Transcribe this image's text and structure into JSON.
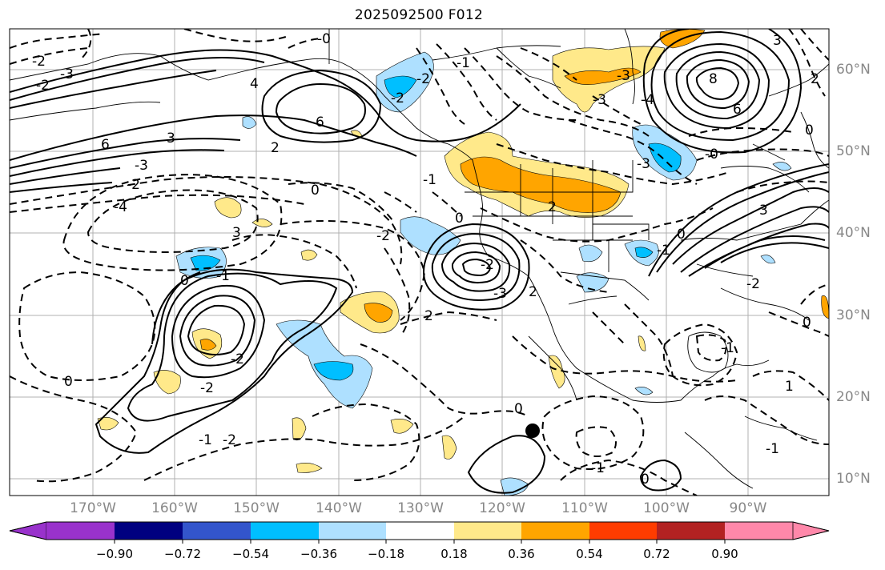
{
  "title": "2025092500 F012",
  "map": {
    "lon_labels": [
      "170°W",
      "160°W",
      "150°W",
      "140°W",
      "130°W",
      "120°W",
      "110°W",
      "100°W",
      "90°W"
    ],
    "lat_labels": [
      "60°N",
      "50°N",
      "40°N",
      "30°N",
      "20°N",
      "10°N"
    ],
    "contour_labels": [
      "6",
      "4",
      "6",
      "3",
      "2",
      "0",
      "-1",
      "-2",
      "-3",
      "-4",
      "3",
      "0",
      "2",
      "-2",
      "-3",
      "-2",
      "2",
      "3",
      "-2",
      "0",
      "-1",
      "-1",
      "-2",
      "0",
      "-1",
      "0",
      "-2",
      "-1",
      "0",
      "8",
      "6",
      "-0",
      "3",
      "2",
      "-3",
      "-0",
      "-2",
      "-3",
      "-2",
      "1",
      "0",
      "-1",
      "-2",
      "-1",
      "-2",
      "-3",
      "-4",
      "-3",
      "0",
      "-1",
      "0",
      "-2",
      "2"
    ],
    "hatch_colors": {
      "neg_light": "#aee0ff",
      "neg_mid": "#00bfff",
      "pos_light": "#ffe98a",
      "pos_mid": "#ffa500"
    }
  },
  "colorbar": {
    "tick_labels": [
      "−0.90",
      "−0.72",
      "−0.54",
      "−0.36",
      "−0.18",
      "0.18",
      "0.36",
      "0.54",
      "0.72",
      "0.90"
    ],
    "colors": [
      "#9932cc",
      "#000080",
      "#3355cc",
      "#00bfff",
      "#aee0ff",
      "#ffffff",
      "#ffe98a",
      "#ffa500",
      "#ff3c00",
      "#b22222",
      "#ff88aa"
    ]
  }
}
